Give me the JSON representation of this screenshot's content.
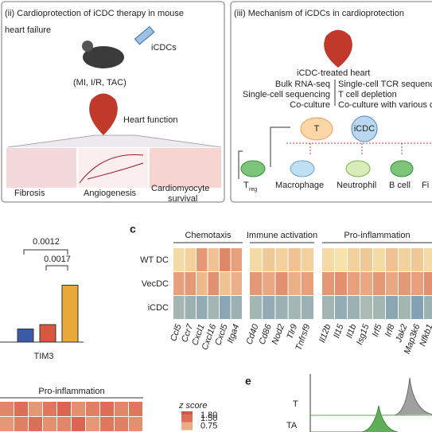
{
  "panel_ii": {
    "title_lines": [
      "(ii)  Cardioprotection of iCDC therapy in mouse",
      "heart failure"
    ],
    "injection": "iCDCs",
    "models": "(MI, I/R, TAC)",
    "outcome": "Heart function",
    "insets": [
      "Fibrosis",
      "Angiogenesis",
      "Cardiomyocyte",
      "survival"
    ]
  },
  "panel_iii": {
    "title": "(iii) Mechanism of iCDCs in cardioprotection",
    "heart": "iCDC-treated heart",
    "methods_left": [
      "Bulk RNA-seq",
      "Single-cell sequencing",
      "Co-culture"
    ],
    "methods_right": [
      "Single-cell TCR sequenc",
      "T cell depletion",
      "Co-culture with various c"
    ],
    "t_cell": "T",
    "icdc": "iCDC",
    "treg": "T",
    "treg_sub": "reg",
    "targets": [
      "Macrophage",
      "Neutrophil",
      "B cell",
      "Fi"
    ]
  },
  "panel_b": {
    "pvalues": [
      "0.0012",
      "0.0017"
    ],
    "xlabel": "TIM3",
    "values": [
      0.3,
      0.4,
      1.3
    ],
    "colors": [
      "#3b5ba9",
      "#d9573f",
      "#e9a93a"
    ],
    "ylim": [
      0,
      2
    ]
  },
  "panel_c": {
    "letter": "c",
    "groups": [
      "Chemotaxis",
      "Immune activation",
      "Pro-inflammation"
    ],
    "rows": [
      "WT DC",
      "VecDC",
      "iCDC"
    ],
    "columns": [
      "Ccl5",
      "Ccr7",
      "Cxcl1",
      "Cxcl16",
      "Cxcl5",
      "Itga4",
      "Cd40",
      "Cd86",
      "Nod2",
      "Tlr9",
      "Tnfrsf9",
      "Il12b",
      "Il15",
      "Il1b",
      "Isg15",
      "Irf5",
      "Irf8",
      "Jak2",
      "Map3k6",
      "Nfkb1"
    ],
    "values": [
      [
        0.2,
        0.3,
        1.0,
        0.5,
        1.2,
        0.9,
        0.2,
        0.4,
        0.3,
        0.5,
        0.3,
        0.2,
        0.1,
        0.3,
        0.4,
        0.2,
        0.5,
        0.3,
        0.4,
        0.2
      ],
      [
        0.9,
        1.0,
        0.6,
        1.1,
        0.5,
        0.7,
        1.0,
        0.8,
        1.1,
        0.7,
        0.9,
        1.0,
        1.1,
        0.9,
        0.8,
        1.0,
        0.8,
        1.0,
        0.9,
        1.1
      ],
      [
        -1.0,
        -1.1,
        -1.2,
        -1.0,
        -1.3,
        -1.1,
        -1.0,
        -1.2,
        -1.1,
        -1.0,
        -1.1,
        -1.0,
        -1.2,
        -1.1,
        -0.9,
        -1.0,
        -1.3,
        -1.0,
        -1.4,
        -1.1
      ]
    ]
  },
  "panel_d": {
    "group": "Pro-inflammation",
    "legend_title": "z score",
    "legend_ticks": [
      {
        "value": 1.8,
        "label": "1.80"
      },
      {
        "value": 1.5,
        "label": "1.50"
      },
      {
        "value": 0.75,
        "label": "0.75"
      }
    ],
    "values": [
      [
        1.2,
        1.5,
        1.0,
        1.4,
        1.6,
        1.1,
        1.3,
        1.5,
        1.2,
        1.4
      ],
      [
        1.0,
        1.3,
        1.5,
        1.1,
        1.2,
        1.6,
        1.0,
        1.4,
        1.3,
        1.1
      ]
    ]
  },
  "panel_e": {
    "letter": "e",
    "rows": [
      "T",
      "TA"
    ]
  }
}
